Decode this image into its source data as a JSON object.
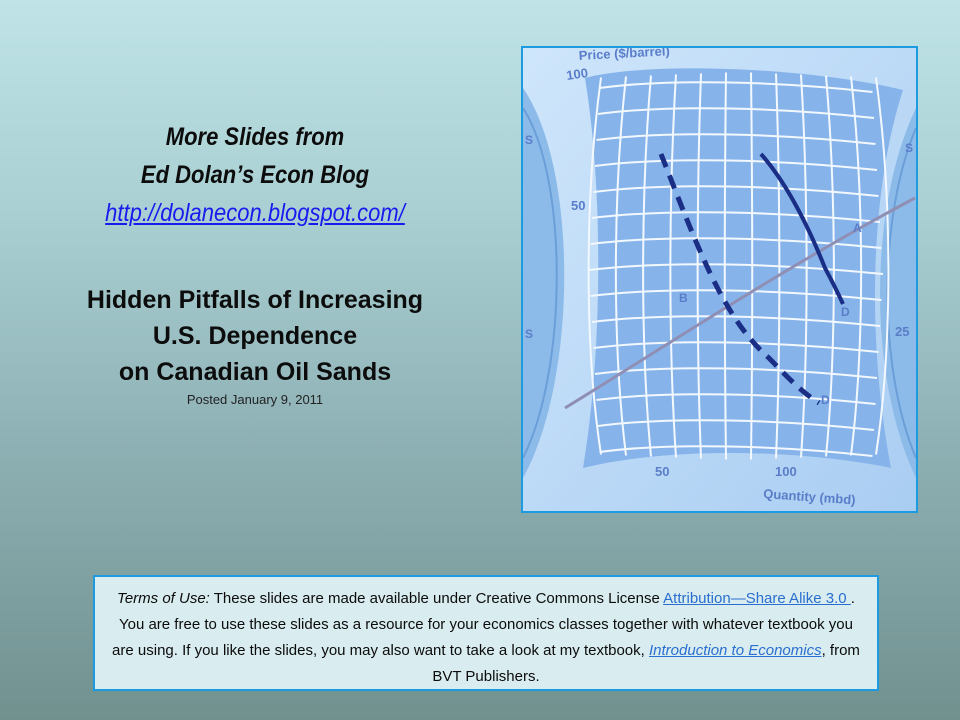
{
  "blog": {
    "line1": "More Slides from",
    "line2": "Ed Dolan’s Econ Blog",
    "url": "http://dolanecon.blogspot.com/"
  },
  "title": {
    "line1": "Hidden Pitfalls of Increasing",
    "line2": "U.S. Dependence",
    "line3": "on Canadian Oil Sands"
  },
  "posted": "Posted  January 9, 2011",
  "chart": {
    "y_axis_label": "Price ($/barrel)",
    "x_axis_label": "Quantity (mbd)",
    "y_ticks": [
      "100",
      "50",
      "25"
    ],
    "x_ticks": [
      "50",
      "100"
    ],
    "curve_labels": [
      "S",
      "D",
      "D",
      "A",
      "B",
      "S",
      "S"
    ],
    "colors": {
      "demand_curve": "#1b2e86",
      "supply_curve": "#8f8fb5",
      "grid_fill": "#86b4ea"
    }
  },
  "terms": {
    "label": "Terms of Use:",
    "text1": " These slides are made available under Creative Commons License ",
    "license_link": "Attribution—Share Alike 3.0 ",
    "text2": ". You are free to use these slides as a resource for your economics classes together with whatever textbook you are using. If you like the slides, you may also want to take a look at my textbook, ",
    "book_link": "Introduction to Economics",
    "text3": ", from BVT Publishers."
  }
}
